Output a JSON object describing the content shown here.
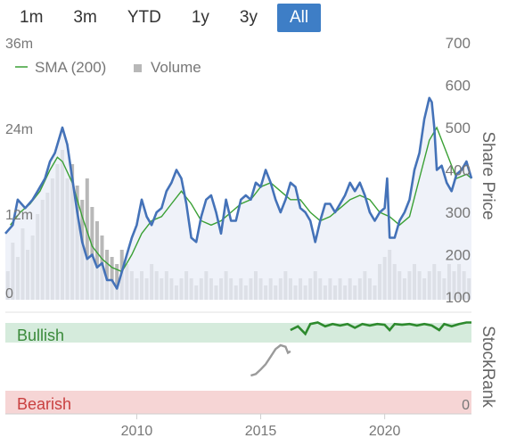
{
  "range_buttons": [
    {
      "label": "1m",
      "active": false
    },
    {
      "label": "3m",
      "active": false
    },
    {
      "label": "YTD",
      "active": false
    },
    {
      "label": "1y",
      "active": false
    },
    {
      "label": "3y",
      "active": false
    },
    {
      "label": "All",
      "active": true
    }
  ],
  "legend": {
    "sma_label": "SMA (200)",
    "volume_label": "Volume"
  },
  "colors": {
    "price": "#4472b8",
    "sma": "#3aa035",
    "volume": "#b8b8b8",
    "stockrank": "#2e8a2e",
    "stockrank_early": "#9a9a9a",
    "bullish_bg": "#d5ebdc",
    "bearish_bg": "#f6d5d5",
    "accent": "#3e7ec6"
  },
  "chart_data": {
    "type": "line",
    "price": {
      "axis_label": "Share Price",
      "yticks": [
        100,
        200,
        300,
        400,
        500,
        600,
        700
      ],
      "ylim": [
        100,
        700
      ],
      "series": [
        {
          "name": "Share Price",
          "points": [
            [
              2004.7,
              250
            ],
            [
              2005.0,
              270
            ],
            [
              2005.2,
              330
            ],
            [
              2005.5,
              310
            ],
            [
              2005.8,
              330
            ],
            [
              2006.0,
              350
            ],
            [
              2006.3,
              380
            ],
            [
              2006.5,
              420
            ],
            [
              2006.7,
              440
            ],
            [
              2006.9,
              480
            ],
            [
              2007.0,
              500
            ],
            [
              2007.2,
              460
            ],
            [
              2007.4,
              380
            ],
            [
              2007.6,
              300
            ],
            [
              2007.8,
              230
            ],
            [
              2008.0,
              190
            ],
            [
              2008.2,
              200
            ],
            [
              2008.4,
              170
            ],
            [
              2008.6,
              180
            ],
            [
              2008.8,
              140
            ],
            [
              2009.0,
              140
            ],
            [
              2009.2,
              120
            ],
            [
              2009.4,
              160
            ],
            [
              2009.6,
              200
            ],
            [
              2009.8,
              240
            ],
            [
              2010.0,
              270
            ],
            [
              2010.2,
              330
            ],
            [
              2010.4,
              290
            ],
            [
              2010.6,
              270
            ],
            [
              2010.8,
              300
            ],
            [
              2011.0,
              310
            ],
            [
              2011.2,
              350
            ],
            [
              2011.4,
              370
            ],
            [
              2011.6,
              400
            ],
            [
              2011.8,
              380
            ],
            [
              2012.0,
              320
            ],
            [
              2012.2,
              240
            ],
            [
              2012.4,
              230
            ],
            [
              2012.6,
              290
            ],
            [
              2012.8,
              330
            ],
            [
              2013.0,
              340
            ],
            [
              2013.2,
              300
            ],
            [
              2013.4,
              250
            ],
            [
              2013.6,
              330
            ],
            [
              2013.8,
              280
            ],
            [
              2014.0,
              280
            ],
            [
              2014.2,
              330
            ],
            [
              2014.4,
              340
            ],
            [
              2014.6,
              330
            ],
            [
              2014.8,
              370
            ],
            [
              2015.0,
              360
            ],
            [
              2015.2,
              400
            ],
            [
              2015.4,
              370
            ],
            [
              2015.6,
              330
            ],
            [
              2015.8,
              300
            ],
            [
              2016.0,
              330
            ],
            [
              2016.2,
              370
            ],
            [
              2016.4,
              360
            ],
            [
              2016.6,
              310
            ],
            [
              2016.8,
              300
            ],
            [
              2017.0,
              280
            ],
            [
              2017.2,
              230
            ],
            [
              2017.4,
              280
            ],
            [
              2017.6,
              320
            ],
            [
              2017.8,
              320
            ],
            [
              2018.0,
              300
            ],
            [
              2018.2,
              320
            ],
            [
              2018.4,
              340
            ],
            [
              2018.6,
              370
            ],
            [
              2018.8,
              350
            ],
            [
              2019.0,
              370
            ],
            [
              2019.2,
              340
            ],
            [
              2019.4,
              300
            ],
            [
              2019.6,
              280
            ],
            [
              2019.8,
              300
            ],
            [
              2020.0,
              310
            ],
            [
              2020.1,
              380
            ],
            [
              2020.2,
              240
            ],
            [
              2020.4,
              240
            ],
            [
              2020.6,
              280
            ],
            [
              2020.8,
              300
            ],
            [
              2021.0,
              330
            ],
            [
              2021.2,
              400
            ],
            [
              2021.4,
              440
            ],
            [
              2021.6,
              520
            ],
            [
              2021.8,
              570
            ],
            [
              2021.9,
              560
            ],
            [
              2022.0,
              500
            ],
            [
              2022.1,
              400
            ],
            [
              2022.3,
              410
            ],
            [
              2022.5,
              370
            ],
            [
              2022.7,
              350
            ],
            [
              2022.9,
              390
            ],
            [
              2023.1,
              400
            ],
            [
              2023.3,
              420
            ],
            [
              2023.5,
              380
            ]
          ]
        },
        {
          "name": "SMA (200)",
          "points": [
            [
              2004.9,
              270
            ],
            [
              2005.3,
              300
            ],
            [
              2005.7,
              320
            ],
            [
              2006.1,
              350
            ],
            [
              2006.5,
              400
            ],
            [
              2006.8,
              430
            ],
            [
              2007.0,
              420
            ],
            [
              2007.4,
              370
            ],
            [
              2007.8,
              290
            ],
            [
              2008.2,
              220
            ],
            [
              2008.6,
              190
            ],
            [
              2009.0,
              170
            ],
            [
              2009.4,
              160
            ],
            [
              2009.8,
              200
            ],
            [
              2010.2,
              250
            ],
            [
              2010.6,
              280
            ],
            [
              2011.0,
              290
            ],
            [
              2011.4,
              320
            ],
            [
              2011.8,
              350
            ],
            [
              2012.2,
              320
            ],
            [
              2012.6,
              280
            ],
            [
              2013.0,
              270
            ],
            [
              2013.4,
              280
            ],
            [
              2013.8,
              300
            ],
            [
              2014.2,
              320
            ],
            [
              2014.6,
              330
            ],
            [
              2015.0,
              360
            ],
            [
              2015.4,
              370
            ],
            [
              2015.8,
              350
            ],
            [
              2016.2,
              330
            ],
            [
              2016.6,
              330
            ],
            [
              2017.0,
              300
            ],
            [
              2017.4,
              280
            ],
            [
              2017.8,
              290
            ],
            [
              2018.2,
              310
            ],
            [
              2018.6,
              330
            ],
            [
              2019.0,
              340
            ],
            [
              2019.4,
              330
            ],
            [
              2019.8,
              300
            ],
            [
              2020.2,
              290
            ],
            [
              2020.6,
              270
            ],
            [
              2021.0,
              290
            ],
            [
              2021.4,
              380
            ],
            [
              2021.8,
              470
            ],
            [
              2022.1,
              500
            ],
            [
              2022.5,
              440
            ],
            [
              2022.9,
              380
            ],
            [
              2023.3,
              390
            ],
            [
              2023.5,
              380
            ]
          ]
        }
      ]
    },
    "volume": {
      "yticks": [
        "0",
        "12m",
        "24m",
        "36m"
      ],
      "series": {
        "name": "Volume",
        "points": [
          [
            2004.8,
            4
          ],
          [
            2005.0,
            8
          ],
          [
            2005.2,
            6
          ],
          [
            2005.4,
            10
          ],
          [
            2005.6,
            7
          ],
          [
            2005.8,
            9
          ],
          [
            2006.0,
            12
          ],
          [
            2006.2,
            14
          ],
          [
            2006.4,
            15
          ],
          [
            2006.6,
            17
          ],
          [
            2006.8,
            19
          ],
          [
            2007.0,
            21
          ],
          [
            2007.2,
            17
          ],
          [
            2007.4,
            19
          ],
          [
            2007.6,
            16
          ],
          [
            2007.8,
            14
          ],
          [
            2008.0,
            17
          ],
          [
            2008.2,
            13
          ],
          [
            2008.4,
            11
          ],
          [
            2008.6,
            9
          ],
          [
            2008.8,
            7
          ],
          [
            2009.0,
            6
          ],
          [
            2009.2,
            5
          ],
          [
            2009.4,
            7
          ],
          [
            2009.6,
            5
          ],
          [
            2009.8,
            4
          ],
          [
            2010.0,
            3
          ],
          [
            2010.2,
            4
          ],
          [
            2010.4,
            3
          ],
          [
            2010.6,
            5
          ],
          [
            2010.8,
            4
          ],
          [
            2011.0,
            3
          ],
          [
            2011.2,
            4
          ],
          [
            2011.4,
            3
          ],
          [
            2011.6,
            2
          ],
          [
            2011.8,
            3
          ],
          [
            2012.0,
            4
          ],
          [
            2012.2,
            3
          ],
          [
            2012.4,
            2
          ],
          [
            2012.6,
            3
          ],
          [
            2012.8,
            4
          ],
          [
            2013.0,
            3
          ],
          [
            2013.2,
            2
          ],
          [
            2013.4,
            3
          ],
          [
            2013.6,
            4
          ],
          [
            2013.8,
            3
          ],
          [
            2014.0,
            2
          ],
          [
            2014.2,
            3
          ],
          [
            2014.4,
            2
          ],
          [
            2014.6,
            3
          ],
          [
            2014.8,
            4
          ],
          [
            2015.0,
            3
          ],
          [
            2015.2,
            2
          ],
          [
            2015.4,
            3
          ],
          [
            2015.6,
            2
          ],
          [
            2015.8,
            3
          ],
          [
            2016.0,
            4
          ],
          [
            2016.2,
            3
          ],
          [
            2016.4,
            2
          ],
          [
            2016.6,
            3
          ],
          [
            2016.8,
            2
          ],
          [
            2017.0,
            3
          ],
          [
            2017.2,
            4
          ],
          [
            2017.4,
            3
          ],
          [
            2017.6,
            2
          ],
          [
            2017.8,
            3
          ],
          [
            2018.0,
            2
          ],
          [
            2018.2,
            3
          ],
          [
            2018.4,
            2
          ],
          [
            2018.6,
            3
          ],
          [
            2018.8,
            2
          ],
          [
            2019.0,
            3
          ],
          [
            2019.2,
            4
          ],
          [
            2019.4,
            3
          ],
          [
            2019.6,
            2
          ],
          [
            2019.8,
            5
          ],
          [
            2020.0,
            6
          ],
          [
            2020.2,
            7
          ],
          [
            2020.4,
            5
          ],
          [
            2020.6,
            4
          ],
          [
            2020.8,
            3
          ],
          [
            2021.0,
            4
          ],
          [
            2021.2,
            5
          ],
          [
            2021.4,
            4
          ],
          [
            2021.6,
            3
          ],
          [
            2021.8,
            4
          ],
          [
            2022.0,
            5
          ],
          [
            2022.2,
            4
          ],
          [
            2022.4,
            3
          ],
          [
            2022.6,
            5
          ],
          [
            2022.8,
            4
          ],
          [
            2023.0,
            5
          ],
          [
            2023.2,
            4
          ],
          [
            2023.4,
            3
          ]
        ]
      }
    },
    "stockrank": {
      "axis_label": "StockRank",
      "bands": [
        "Bullish",
        "Bearish"
      ],
      "ytick": "0",
      "series": [
        {
          "name": "StockRank (early)",
          "points": [
            [
              2014.6,
              20
            ],
            [
              2014.8,
              22
            ],
            [
              2015.0,
              28
            ],
            [
              2015.2,
              35
            ],
            [
              2015.4,
              45
            ],
            [
              2015.6,
              55
            ],
            [
              2015.8,
              60
            ],
            [
              2016.0,
              58
            ],
            [
              2016.1,
              50
            ],
            [
              2016.2,
              52
            ]
          ]
        },
        {
          "name": "StockRank",
          "points": [
            [
              2016.2,
              80
            ],
            [
              2016.5,
              85
            ],
            [
              2016.8,
              75
            ],
            [
              2017.0,
              88
            ],
            [
              2017.3,
              90
            ],
            [
              2017.6,
              85
            ],
            [
              2017.9,
              88
            ],
            [
              2018.2,
              86
            ],
            [
              2018.5,
              88
            ],
            [
              2018.8,
              83
            ],
            [
              2019.1,
              88
            ],
            [
              2019.4,
              86
            ],
            [
              2019.7,
              88
            ],
            [
              2020.0,
              87
            ],
            [
              2020.2,
              80
            ],
            [
              2020.4,
              88
            ],
            [
              2020.7,
              87
            ],
            [
              2021.0,
              88
            ],
            [
              2021.3,
              86
            ],
            [
              2021.6,
              88
            ],
            [
              2021.9,
              86
            ],
            [
              2022.2,
              80
            ],
            [
              2022.4,
              88
            ],
            [
              2022.7,
              85
            ],
            [
              2023.0,
              88
            ],
            [
              2023.3,
              90
            ],
            [
              2023.5,
              90
            ]
          ]
        }
      ]
    },
    "xticks": [
      "2010",
      "2015",
      "2020"
    ],
    "xlim": [
      2004.7,
      2023.5
    ]
  }
}
